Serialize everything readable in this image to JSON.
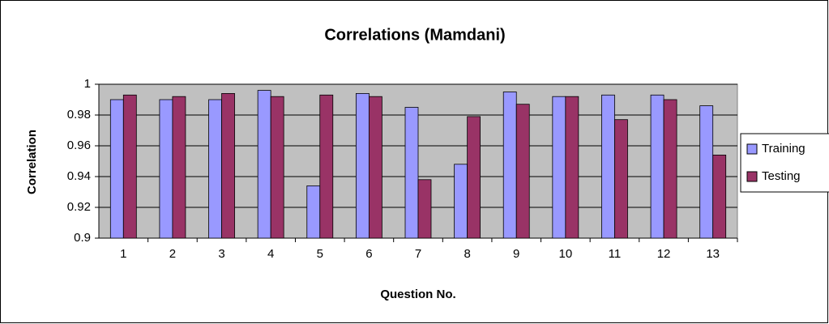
{
  "chart_data": {
    "type": "bar",
    "title": "Correlations (Mamdani)",
    "x_label": "Question No.",
    "y_label": "Correlation",
    "categories": [
      "1",
      "2",
      "3",
      "4",
      "5",
      "6",
      "7",
      "8",
      "9",
      "10",
      "11",
      "12",
      "13"
    ],
    "series": [
      {
        "name": "Training",
        "color": "#9999ff",
        "values": [
          0.99,
          0.99,
          0.99,
          0.996,
          0.934,
          0.994,
          0.985,
          0.948,
          0.995,
          0.992,
          0.993,
          0.993,
          0.986
        ]
      },
      {
        "name": "Testing",
        "color": "#993366",
        "values": [
          0.993,
          0.992,
          0.994,
          0.992,
          0.993,
          0.992,
          0.938,
          0.979,
          0.987,
          0.992,
          0.977,
          0.99,
          0.954
        ]
      }
    ],
    "ylim": [
      0.9,
      1
    ],
    "yticks": [
      0.9,
      0.92,
      0.94,
      0.96,
      0.98,
      1
    ],
    "grid": true,
    "legend": "right"
  }
}
